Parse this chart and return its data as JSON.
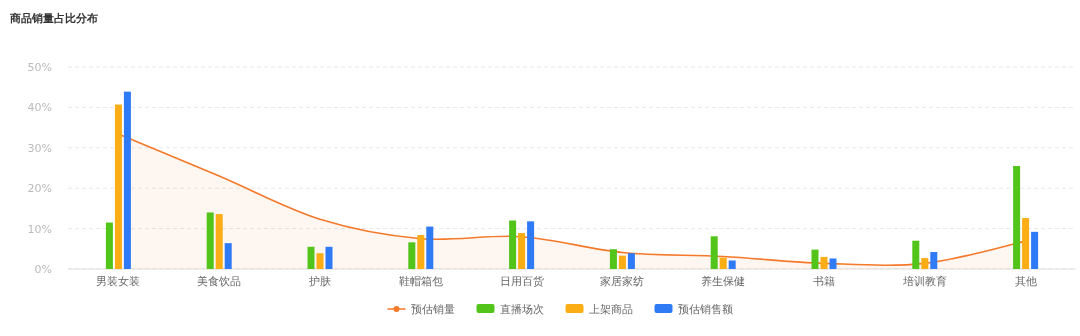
{
  "chart_data": {
    "type": "bar",
    "title": "商品销量占比分布",
    "categories": [
      "男装女装",
      "美食饮品",
      "护肤",
      "鞋帽箱包",
      "日用百货",
      "家居家纺",
      "养生保健",
      "书籍",
      "培训教育",
      "其他"
    ],
    "series": [
      {
        "name": "预估销量",
        "type": "area",
        "color": "#f5792a",
        "values": [
          33.4,
          23,
          12.3,
          7.5,
          8.0,
          4.1,
          3.1,
          1.4,
          1.4,
          6.9
        ]
      },
      {
        "name": "直播场次",
        "color": "#52c41a",
        "values": [
          11.5,
          14.0,
          5.5,
          6.6,
          12.0,
          4.9,
          8.1,
          4.8,
          7.0,
          25.5
        ]
      },
      {
        "name": "上架商品",
        "color": "#faad14",
        "values": [
          40.7,
          13.6,
          3.9,
          8.4,
          8.9,
          3.3,
          2.8,
          3.0,
          2.7,
          12.6
        ]
      },
      {
        "name": "预估销售额",
        "color": "#2f7bf5",
        "values": [
          43.9,
          6.4,
          5.5,
          10.5,
          11.8,
          3.9,
          2.1,
          2.6,
          4.2,
          9.2
        ]
      }
    ],
    "ylim": [
      0,
      50
    ],
    "yticks": [
      {
        "value": 0,
        "label": "0%"
      },
      {
        "value": 10,
        "label": "10%"
      },
      {
        "value": 20,
        "label": "20%"
      },
      {
        "value": 30,
        "label": "30%"
      },
      {
        "value": 40,
        "label": "40%"
      },
      {
        "value": 50,
        "label": "50%"
      }
    ],
    "grid": "y",
    "legend": "bottom"
  }
}
